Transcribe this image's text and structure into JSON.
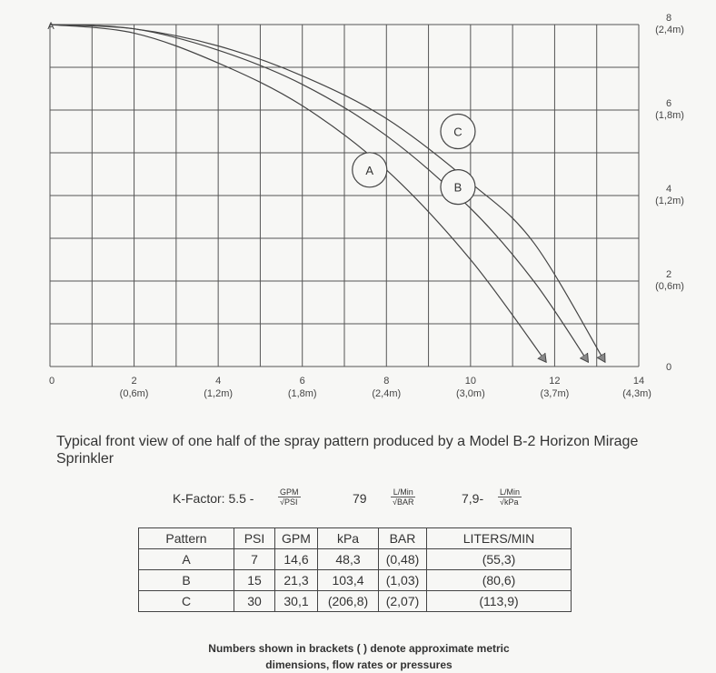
{
  "chart_data": {
    "type": "line",
    "x_range": [
      0,
      14
    ],
    "y_range": [
      0,
      8
    ],
    "grid": true,
    "x_ticks": [
      {
        "value": 0,
        "label": "0",
        "metric": ""
      },
      {
        "value": 2,
        "label": "2",
        "metric": "(0,6m)"
      },
      {
        "value": 4,
        "label": "4",
        "metric": "(1,2m)"
      },
      {
        "value": 6,
        "label": "6",
        "metric": "(1,8m)"
      },
      {
        "value": 8,
        "label": "8",
        "metric": "(2,4m)"
      },
      {
        "value": 10,
        "label": "10",
        "metric": "(3,0m)"
      },
      {
        "value": 12,
        "label": "12",
        "metric": "(3,7m)"
      },
      {
        "value": 14,
        "label": "14",
        "metric": "(4,3m)"
      }
    ],
    "y_ticks": [
      {
        "value": 0,
        "label": "0",
        "metric": ""
      },
      {
        "value": 2,
        "label": "2",
        "metric": "(0,6m)"
      },
      {
        "value": 4,
        "label": "4",
        "metric": "(1,2m)"
      },
      {
        "value": 6,
        "label": "6",
        "metric": "(1,8m)"
      },
      {
        "value": 8,
        "label": "8",
        "metric": "(2,4m)"
      }
    ],
    "origin_marker": "A",
    "series": [
      {
        "name": "A",
        "x": [
          0,
          2,
          4,
          6,
          8,
          10,
          11.8
        ],
        "y": [
          8,
          7.8,
          7.1,
          6.1,
          4.6,
          2.5,
          0.1
        ]
      },
      {
        "name": "B",
        "x": [
          0,
          2,
          4,
          6,
          8,
          10,
          11.5,
          12.8
        ],
        "y": [
          8,
          7.9,
          7.4,
          6.6,
          5.4,
          3.7,
          2.0,
          0.1
        ]
      },
      {
        "name": "C",
        "x": [
          0,
          2,
          4,
          6,
          8,
          10,
          11.5,
          13.2
        ],
        "y": [
          8,
          7.9,
          7.5,
          6.8,
          5.8,
          4.3,
          2.9,
          0.1
        ]
      }
    ],
    "series_labels": [
      {
        "name": "A",
        "x": 7.6,
        "y": 4.6
      },
      {
        "name": "B",
        "x": 9.7,
        "y": 4.2
      },
      {
        "name": "C",
        "x": 9.7,
        "y": 5.5
      }
    ]
  },
  "caption": "Typical front view of one half of the spray pattern produced by a Model B-2 Horizon Mirage Sprinkler",
  "kfactor": {
    "prefix": "K-Factor: 5.5 -",
    "frac1_num": "GPM",
    "frac1_den": "√PSI",
    "mid": "79",
    "frac2_num": "L/Min",
    "frac2_den": "√BAR",
    "suffix": "7,9-",
    "frac3_num": "L/Min",
    "frac3_den": "√kPa"
  },
  "table": {
    "headers": [
      "Pattern",
      "PSI",
      "GPM",
      "kPa",
      "BAR",
      "LITERS/MIN"
    ],
    "rows": [
      [
        "A",
        "7",
        "14,6",
        "48,3",
        "(0,48)",
        "(55,3)"
      ],
      [
        "B",
        "15",
        "21,3",
        "103,4",
        "(1,03)",
        "(80,6)"
      ],
      [
        "C",
        "30",
        "30,1",
        "(206,8)",
        "(2,07)",
        "(113,9)"
      ]
    ]
  },
  "footnote": {
    "line1": "Numbers shown in brackets ( ) denote approximate metric",
    "line2": "dimensions, flow rates or pressures"
  }
}
